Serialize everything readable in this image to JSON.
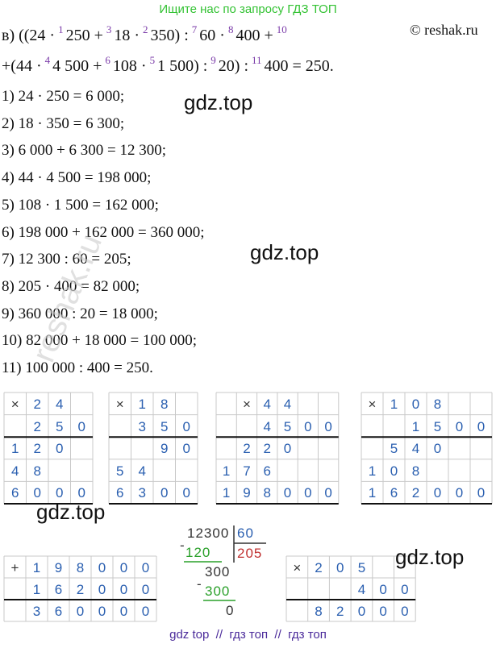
{
  "header": {
    "banner": "Ищите нас по запросу ГДЗ ТОП",
    "copyright": "© reshak.ru"
  },
  "expression": [
    [
      {
        "text": "в) ((24 ·",
        "sup": "1"
      },
      {
        "text": "250 +",
        "sup": "3"
      },
      {
        "text": "18 ·",
        "sup": "2"
      },
      {
        "text": "350) :",
        "sup": "7"
      },
      {
        "text": "60 ·",
        "sup": "8"
      },
      {
        "text": "400 +",
        "sup": "10"
      }
    ],
    [
      {
        "text": "+(44 ·",
        "sup": "4"
      },
      {
        "text": "4 500 +",
        "sup": "6"
      },
      {
        "text": "108 ·",
        "sup": "5"
      },
      {
        "text": "1 500) :",
        "sup": "9"
      },
      {
        "text": "20) :",
        "sup": "11"
      },
      {
        "text": "400 = 250."
      }
    ]
  ],
  "steps": [
    "1) 24 · 250 = 6 000;",
    "2) 18 · 350 = 6 300;",
    "3) 6 000 + 6 300 = 12 300;",
    "4) 44 · 4 500 = 198 000;",
    "5) 108 · 1 500 = 162 000;",
    "6) 198 000 + 162 000 = 360 000;",
    "7) 12 300 : 60 = 205;",
    "8) 205 · 400 = 82 000;",
    "9) 360 000 : 20 = 18 000;",
    "10) 82 000 + 18 000 = 100 000;",
    "11) 100 000 : 400 = 250."
  ],
  "watermarks": [
    "gdz.top",
    "gdz.top",
    "gdz.top",
    "gdz.top",
    "reshak.ru"
  ],
  "grids": [
    [
      [
        "×",
        "2",
        "4",
        null
      ],
      [
        null,
        "2",
        "5",
        "0"
      ],
      [
        "1",
        "2",
        "0",
        null
      ],
      [
        "4",
        "8",
        null,
        null
      ],
      [
        "6",
        "0",
        "0",
        "0"
      ]
    ],
    [
      [
        "×",
        "1",
        "8",
        null
      ],
      [
        null,
        "3",
        "5",
        "0"
      ],
      [
        null,
        null,
        "9",
        "0"
      ],
      [
        "5",
        "4",
        null,
        null
      ],
      [
        "6",
        "3",
        "0",
        "0"
      ]
    ],
    [
      [
        null,
        "×",
        "4",
        "4",
        null,
        null
      ],
      [
        null,
        null,
        "4",
        "5",
        "0",
        "0"
      ],
      [
        null,
        "2",
        "2",
        "0",
        null,
        null
      ],
      [
        "1",
        "7",
        "6",
        null,
        null,
        null
      ],
      [
        "1",
        "9",
        "8",
        "0",
        "0",
        "0"
      ]
    ],
    [
      [
        "×",
        "1",
        "0",
        "8",
        null,
        null
      ],
      [
        null,
        null,
        "1",
        "5",
        "0",
        "0"
      ],
      [
        null,
        "5",
        "4",
        "0",
        null,
        null
      ],
      [
        "1",
        "0",
        "8",
        null,
        null,
        null
      ],
      [
        "1",
        "6",
        "2",
        "0",
        "0",
        "0"
      ]
    ],
    [
      [
        "+",
        "1",
        "9",
        "8",
        "0",
        "0",
        "0"
      ],
      [
        null,
        "1",
        "6",
        "2",
        "0",
        "0",
        "0"
      ],
      [
        null,
        "3",
        "6",
        "0",
        "0",
        "0",
        "0"
      ]
    ],
    [
      [
        "×",
        "2",
        "0",
        "5",
        null,
        null
      ],
      [
        null,
        null,
        null,
        "4",
        "0",
        "0"
      ],
      [
        null,
        "8",
        "2",
        "0",
        "0",
        "0"
      ]
    ]
  ],
  "division": {
    "dividend": "12300",
    "divisor": "60",
    "quotient": "205",
    "minus1": "-",
    "sub1": "120",
    "rest1": "300",
    "minus2": "-",
    "sub2": "300",
    "rest2": "0"
  },
  "footer": "gdz top  //  гдз топ  //  гдз топ"
}
